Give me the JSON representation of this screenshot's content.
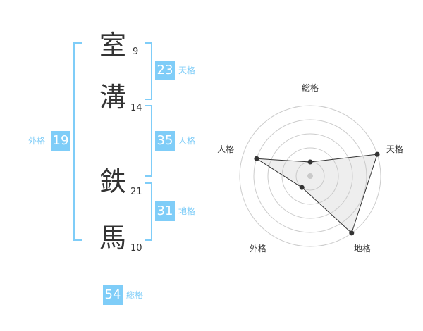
{
  "name_chars": [
    {
      "char": "室",
      "strokes": "9"
    },
    {
      "char": "溝",
      "strokes": "14"
    },
    {
      "char": "鉄",
      "strokes": "21"
    },
    {
      "char": "馬",
      "strokes": "10"
    }
  ],
  "fortunes": {
    "tenkaku": {
      "label": "天格",
      "value": "23"
    },
    "jinkaku": {
      "label": "人格",
      "value": "35"
    },
    "chikaku": {
      "label": "地格",
      "value": "31"
    },
    "gaikaku": {
      "label": "外格",
      "value": "19"
    },
    "soukaku": {
      "label": "総格",
      "value": "54"
    }
  },
  "accent_color": "#7fcdf8",
  "chart_data": {
    "type": "radar",
    "axes": [
      "総格",
      "天格",
      "地格",
      "外格",
      "人格"
    ],
    "values": [
      1,
      5,
      5,
      1,
      4
    ],
    "max": 5,
    "rings": 5
  }
}
